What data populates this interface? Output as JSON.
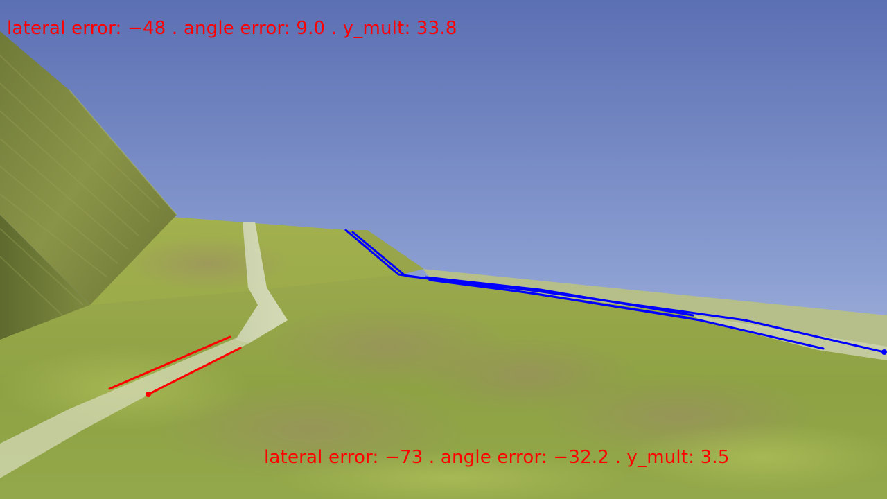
{
  "hud": {
    "top_readout": "lateral error: −48 . angle error: 9.0 . y_mult: 33.8",
    "bottom_readout": "lateral error: −73 . angle error: −32.2 . y_mult: 3.5"
  },
  "colors": {
    "sky_top": "#5b6fb3",
    "sky_horizon": "#c2cde4",
    "grass": "#8fa641",
    "grass_dark": "#7e9538",
    "path": "#d7ddc0",
    "wall": "#747c3a",
    "overlay_red": "#ff0000",
    "overlay_blue": "#0000ff"
  },
  "scene": {
    "description_icons": [
      "grass-ground",
      "sloped-wall",
      "sky",
      "dirt-path"
    ]
  }
}
